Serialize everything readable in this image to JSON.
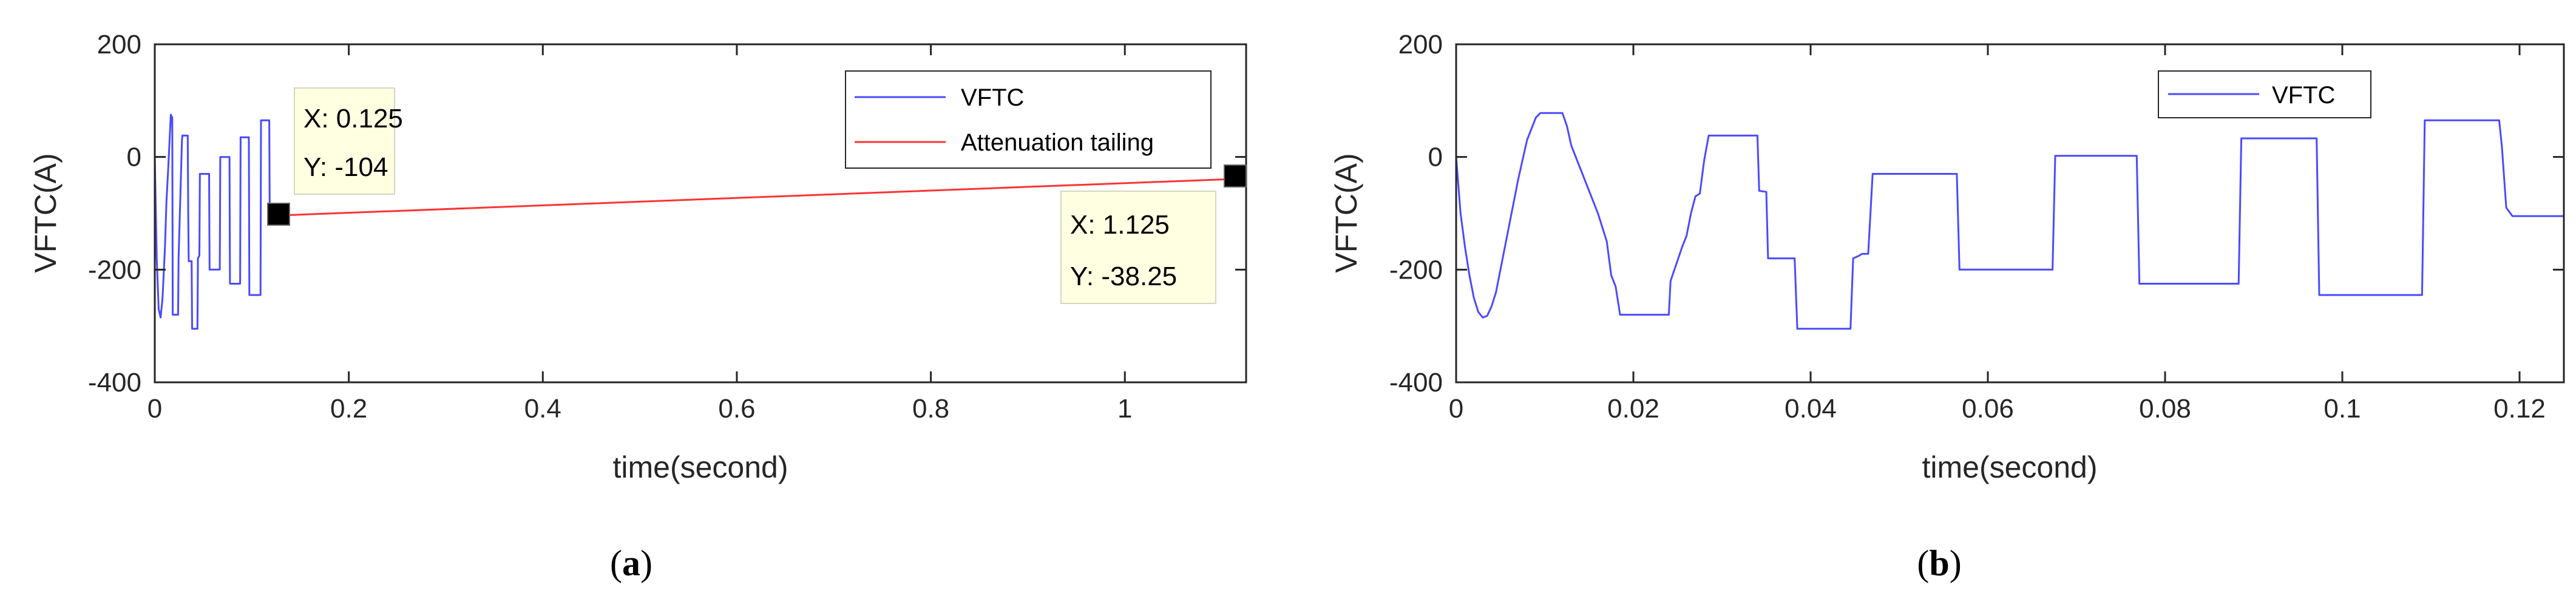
{
  "chart_data": [
    {
      "id": "a",
      "type": "line",
      "panel_label": {
        "open": "(",
        "letter": "a",
        "close": ")"
      },
      "xlabel": "time(second)",
      "ylabel": "VFTC(A)",
      "xlim": [
        0,
        1.125
      ],
      "ylim": [
        -400,
        200
      ],
      "xticks": [
        0,
        0.2,
        0.4,
        0.6,
        0.8,
        1
      ],
      "xtick_labels": [
        "0",
        "0.2",
        "0.4",
        "0.6",
        "0.8",
        "1"
      ],
      "yticks": [
        200,
        0,
        -200,
        -400
      ],
      "ytick_labels": [
        "200",
        "0",
        "-200",
        "-400"
      ],
      "grid": false,
      "legend_position": "top-right",
      "series": [
        {
          "name": "VFTC",
          "color": "#4a4aff",
          "x": [
            0,
            0.002,
            0.004,
            0.006,
            0.008,
            0.0105,
            0.012,
            0.014,
            0.0165,
            0.018,
            0.0185,
            0.024,
            0.0245,
            0.028,
            0.0285,
            0.034,
            0.0345,
            0.035,
            0.038,
            0.0385,
            0.044,
            0.0445,
            0.046,
            0.0465,
            0.056,
            0.0565,
            0.067,
            0.0675,
            0.077,
            0.0775,
            0.088,
            0.0885,
            0.097,
            0.0975,
            0.109,
            0.1095,
            0.118,
            0.1185,
            0.125
          ],
          "y": [
            0,
            -180,
            -270,
            -285,
            -250,
            -160,
            -80,
            -15,
            75,
            70,
            -280,
            -280,
            -180,
            30,
            38,
            38,
            -100,
            -185,
            -185,
            -305,
            -305,
            -180,
            -175,
            -30,
            -30,
            -200,
            -200,
            0,
            0,
            -225,
            -225,
            35,
            35,
            -245,
            -245,
            65,
            65,
            -105,
            -104
          ]
        },
        {
          "name": "Attenuation tailing",
          "color": "#ff3333",
          "x": [
            0.125,
            1.125
          ],
          "y": [
            -104,
            -38.25
          ]
        }
      ],
      "datatips": [
        {
          "x": 0.125,
          "y": -104,
          "line1": "X: 0.125",
          "line2": "Y: -104",
          "box": "upper-right"
        },
        {
          "x": 1.125,
          "y": -38.25,
          "line1": "X: 1.125",
          "line2": "Y: -38.25",
          "box": "lower-left"
        }
      ]
    },
    {
      "id": "b",
      "type": "line",
      "panel_label": {
        "open": "(",
        "letter": "b",
        "close": ")"
      },
      "xlabel": "time(second)",
      "ylabel": "VFTC(A)",
      "xlim": [
        0,
        0.125
      ],
      "ylim": [
        -400,
        200
      ],
      "xticks": [
        0,
        0.02,
        0.04,
        0.06,
        0.08,
        0.1,
        0.12
      ],
      "xtick_labels": [
        "0",
        "0.02",
        "0.04",
        "0.06",
        "0.08",
        "0.1",
        "0.12"
      ],
      "yticks": [
        200,
        0,
        -200,
        -400
      ],
      "ytick_labels": [
        "200",
        "0",
        "-200",
        "-400"
      ],
      "grid": false,
      "legend_position": "top-center",
      "series": [
        {
          "name": "VFTC",
          "color": "#4a4aff",
          "x": [
            0,
            0.0005,
            0.001,
            0.0015,
            0.002,
            0.0025,
            0.003,
            0.0035,
            0.004,
            0.0045,
            0.005,
            0.006,
            0.007,
            0.008,
            0.009,
            0.0095,
            0.01,
            0.0105,
            0.012,
            0.0125,
            0.013,
            0.014,
            0.015,
            0.016,
            0.017,
            0.0175,
            0.018,
            0.0185,
            0.024,
            0.0242,
            0.0255,
            0.026,
            0.0265,
            0.027,
            0.0275,
            0.028,
            0.0285,
            0.034,
            0.0342,
            0.035,
            0.0352,
            0.0382,
            0.0385,
            0.0445,
            0.0448,
            0.0455,
            0.0458,
            0.0465,
            0.047,
            0.0565,
            0.0568,
            0.0673,
            0.0676,
            0.0768,
            0.0771,
            0.0883,
            0.0886,
            0.0971,
            0.0974,
            0.109,
            0.1093,
            0.1177,
            0.118,
            0.1185,
            0.1192,
            0.125
          ],
          "y": [
            0,
            -100,
            -160,
            -210,
            -250,
            -275,
            -285,
            -282,
            -265,
            -240,
            -200,
            -120,
            -40,
            30,
            70,
            78,
            78,
            78,
            78,
            55,
            20,
            -20,
            -60,
            -100,
            -150,
            -210,
            -230,
            -280,
            -280,
            -220,
            -160,
            -140,
            -100,
            -70,
            -65,
            -5,
            38,
            38,
            -60,
            -62,
            -180,
            -180,
            -305,
            -305,
            -180,
            -175,
            -172,
            -172,
            -30,
            -30,
            -200,
            -200,
            2,
            2,
            -225,
            -225,
            33,
            33,
            -245,
            -245,
            65,
            65,
            20,
            -90,
            -105,
            -105
          ]
        }
      ],
      "datatips": []
    }
  ]
}
